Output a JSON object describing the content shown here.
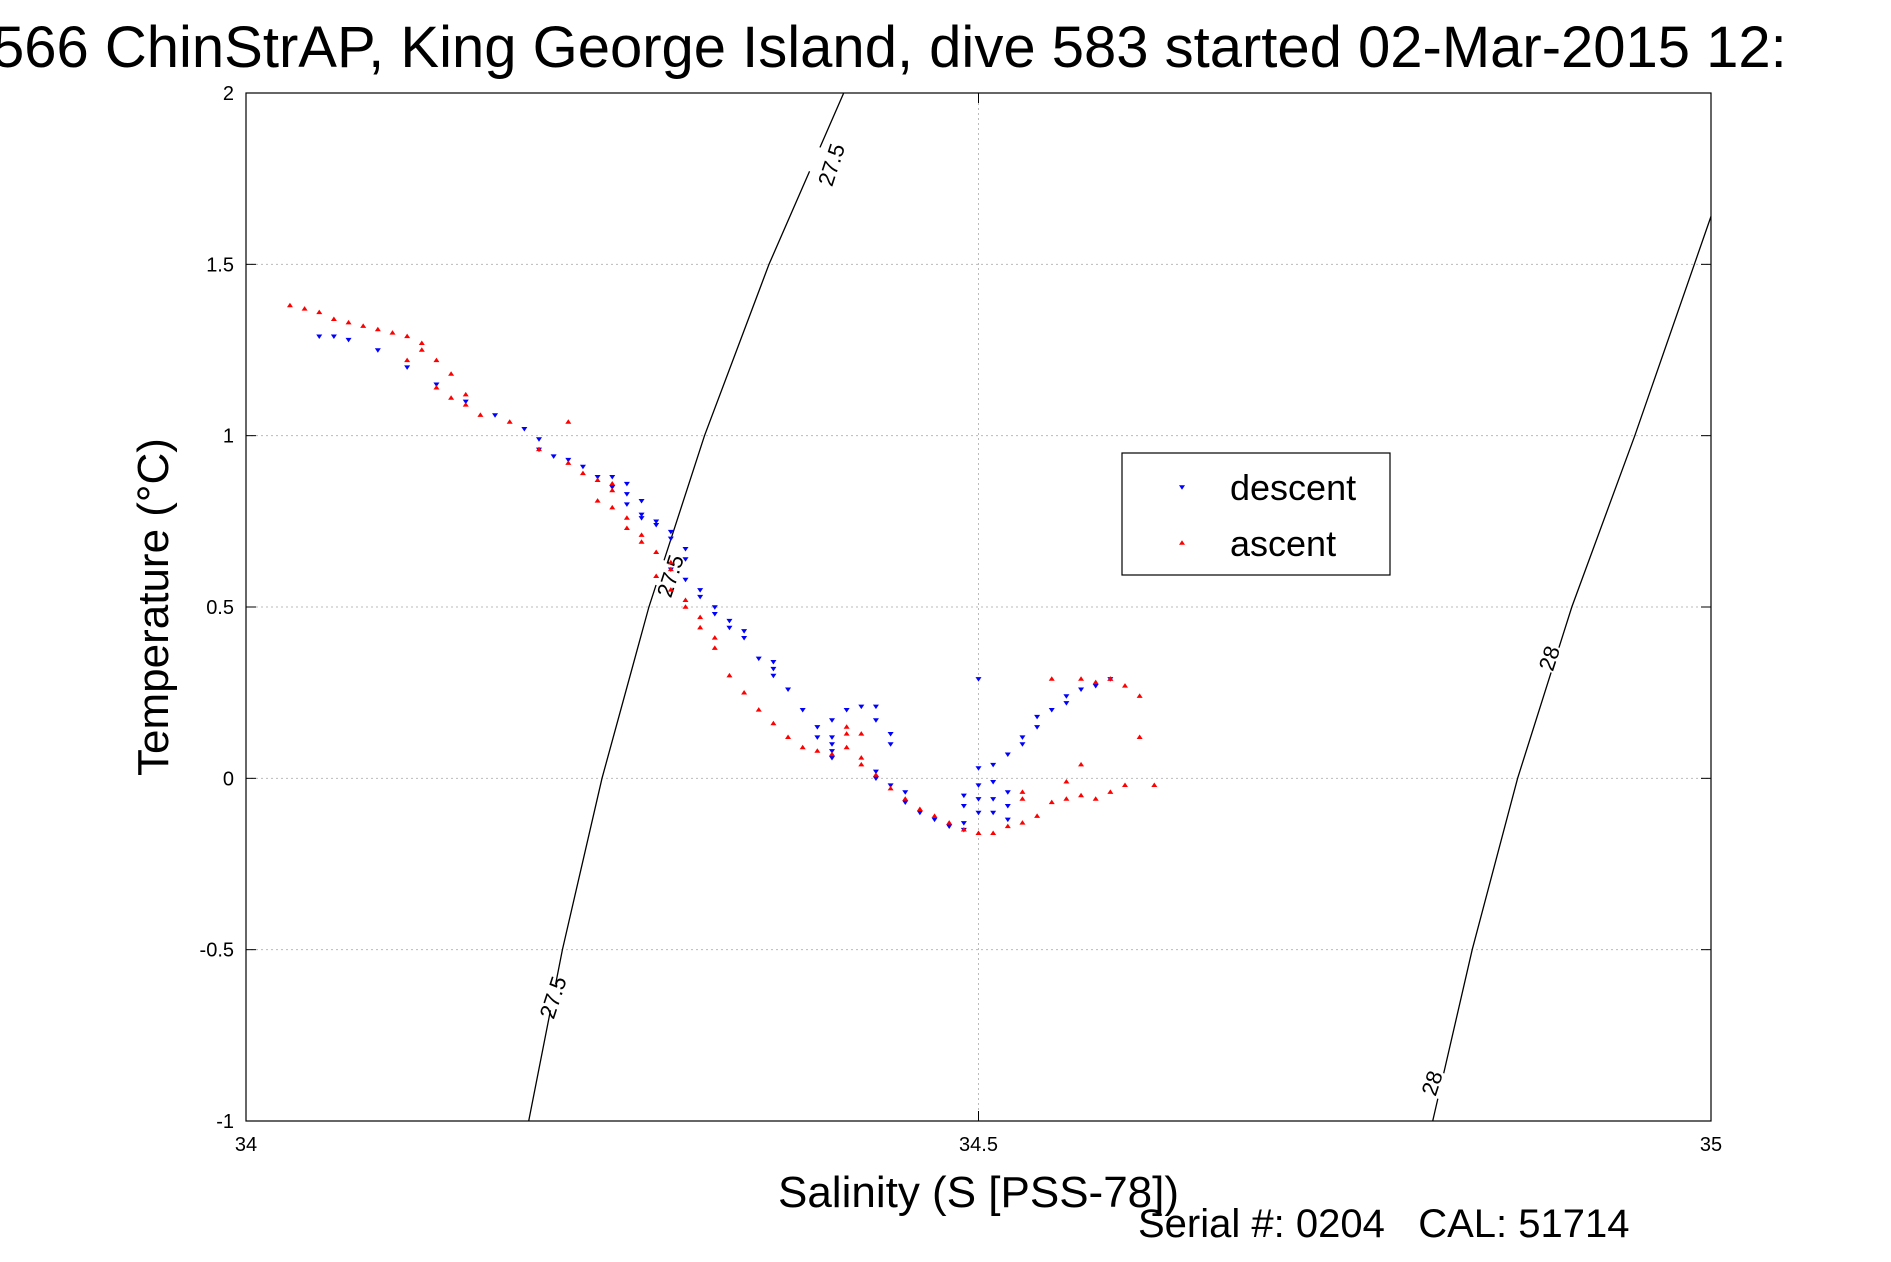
{
  "title": "566 ChinStrAP, King George Island, dive 583 started 02-Mar-2015 12:",
  "footer": {
    "serial_label": "Serial #:",
    "serial_value": "0204",
    "cal_label": "CAL:",
    "cal_value": "51714"
  },
  "colors": {
    "descent": "#0000ff",
    "ascent": "#ff0000",
    "grid": "#bbbbbb",
    "contour": "#000000"
  },
  "chart_data": {
    "type": "scatter",
    "xlabel": "Salinity (S [PSS-78])",
    "ylabel": "Temperature (°C)",
    "xlim": [
      34,
      35
    ],
    "ylim": [
      -1,
      2
    ],
    "xticks": [
      34,
      34.5,
      35
    ],
    "xtick_labels": [
      "34",
      "34.5",
      "35"
    ],
    "yticks": [
      -1,
      -0.5,
      0,
      0.5,
      1,
      1.5,
      2
    ],
    "ytick_labels": [
      "-1",
      "-0.5",
      "0",
      "0.5",
      "1",
      "1.5",
      "2"
    ],
    "grid": true,
    "legend_position": "inside-right",
    "series": [
      {
        "name": "descent",
        "marker": "triangle-down",
        "color": "#0000ff",
        "points": [
          [
            34.05,
            1.29
          ],
          [
            34.06,
            1.29
          ],
          [
            34.07,
            1.28
          ],
          [
            34.09,
            1.25
          ],
          [
            34.11,
            1.2
          ],
          [
            34.13,
            1.15
          ],
          [
            34.15,
            1.1
          ],
          [
            34.17,
            1.06
          ],
          [
            34.19,
            1.02
          ],
          [
            34.2,
            0.99
          ],
          [
            34.2,
            0.96
          ],
          [
            34.21,
            0.94
          ],
          [
            34.22,
            0.93
          ],
          [
            34.23,
            0.91
          ],
          [
            34.24,
            0.88
          ],
          [
            34.25,
            0.88
          ],
          [
            34.26,
            0.86
          ],
          [
            34.25,
            0.85
          ],
          [
            34.26,
            0.83
          ],
          [
            34.27,
            0.81
          ],
          [
            34.26,
            0.8
          ],
          [
            34.27,
            0.77
          ],
          [
            34.28,
            0.74
          ],
          [
            34.29,
            0.72
          ],
          [
            34.28,
            0.75
          ],
          [
            34.27,
            0.76
          ],
          [
            34.29,
            0.7
          ],
          [
            34.3,
            0.67
          ],
          [
            34.3,
            0.64
          ],
          [
            34.29,
            0.61
          ],
          [
            34.3,
            0.58
          ],
          [
            34.31,
            0.55
          ],
          [
            34.31,
            0.53
          ],
          [
            34.32,
            0.5
          ],
          [
            34.32,
            0.48
          ],
          [
            34.33,
            0.46
          ],
          [
            34.33,
            0.44
          ],
          [
            34.34,
            0.43
          ],
          [
            34.34,
            0.41
          ],
          [
            34.35,
            0.35
          ],
          [
            34.36,
            0.34
          ],
          [
            34.36,
            0.32
          ],
          [
            34.36,
            0.3
          ],
          [
            34.37,
            0.26
          ],
          [
            34.38,
            0.2
          ],
          [
            34.39,
            0.15
          ],
          [
            34.39,
            0.12
          ],
          [
            34.4,
            0.1
          ],
          [
            34.4,
            0.06
          ],
          [
            34.4,
            0.08
          ],
          [
            34.4,
            0.12
          ],
          [
            34.4,
            0.17
          ],
          [
            34.41,
            0.2
          ],
          [
            34.42,
            0.21
          ],
          [
            34.43,
            0.21
          ],
          [
            34.43,
            0.17
          ],
          [
            34.44,
            0.13
          ],
          [
            34.44,
            0.1
          ],
          [
            34.43,
            0.02
          ],
          [
            34.43,
            0.0
          ],
          [
            34.44,
            -0.02
          ],
          [
            34.45,
            -0.04
          ],
          [
            34.45,
            -0.07
          ],
          [
            34.46,
            -0.1
          ],
          [
            34.47,
            -0.12
          ],
          [
            34.48,
            -0.14
          ],
          [
            34.49,
            -0.15
          ],
          [
            34.49,
            -0.13
          ],
          [
            34.49,
            -0.08
          ],
          [
            34.49,
            -0.05
          ],
          [
            34.5,
            -0.1
          ],
          [
            34.5,
            -0.06
          ],
          [
            34.5,
            -0.02
          ],
          [
            34.51,
            -0.01
          ],
          [
            34.51,
            -0.06
          ],
          [
            34.51,
            -0.1
          ],
          [
            34.52,
            -0.12
          ],
          [
            34.52,
            -0.08
          ],
          [
            34.52,
            -0.04
          ],
          [
            34.5,
            0.03
          ],
          [
            34.51,
            0.04
          ],
          [
            34.52,
            0.07
          ],
          [
            34.53,
            0.1
          ],
          [
            34.53,
            0.12
          ],
          [
            34.54,
            0.15
          ],
          [
            34.54,
            0.18
          ],
          [
            34.55,
            0.2
          ],
          [
            34.56,
            0.22
          ],
          [
            34.56,
            0.24
          ],
          [
            34.57,
            0.26
          ],
          [
            34.58,
            0.27
          ],
          [
            34.59,
            0.29
          ],
          [
            34.5,
            0.29
          ]
        ]
      },
      {
        "name": "ascent",
        "marker": "triangle-up",
        "color": "#ff0000",
        "points": [
          [
            34.03,
            1.38
          ],
          [
            34.04,
            1.37
          ],
          [
            34.05,
            1.36
          ],
          [
            34.06,
            1.34
          ],
          [
            34.07,
            1.33
          ],
          [
            34.08,
            1.32
          ],
          [
            34.09,
            1.31
          ],
          [
            34.1,
            1.3
          ],
          [
            34.11,
            1.29
          ],
          [
            34.12,
            1.27
          ],
          [
            34.12,
            1.25
          ],
          [
            34.11,
            1.22
          ],
          [
            34.13,
            1.22
          ],
          [
            34.14,
            1.18
          ],
          [
            34.13,
            1.14
          ],
          [
            34.15,
            1.12
          ],
          [
            34.15,
            1.09
          ],
          [
            34.16,
            1.06
          ],
          [
            34.14,
            1.11
          ],
          [
            34.18,
            1.04
          ],
          [
            34.22,
            1.04
          ],
          [
            34.2,
            0.96
          ],
          [
            34.22,
            0.92
          ],
          [
            34.23,
            0.89
          ],
          [
            34.24,
            0.87
          ],
          [
            34.25,
            0.86
          ],
          [
            34.25,
            0.84
          ],
          [
            34.24,
            0.81
          ],
          [
            34.25,
            0.79
          ],
          [
            34.26,
            0.76
          ],
          [
            34.26,
            0.73
          ],
          [
            34.27,
            0.71
          ],
          [
            34.27,
            0.69
          ],
          [
            34.28,
            0.66
          ],
          [
            34.29,
            0.63
          ],
          [
            34.29,
            0.61
          ],
          [
            34.28,
            0.59
          ],
          [
            34.29,
            0.55
          ],
          [
            34.3,
            0.52
          ],
          [
            34.3,
            0.5
          ],
          [
            34.31,
            0.47
          ],
          [
            34.31,
            0.44
          ],
          [
            34.32,
            0.41
          ],
          [
            34.32,
            0.38
          ],
          [
            34.33,
            0.3
          ],
          [
            34.34,
            0.25
          ],
          [
            34.35,
            0.2
          ],
          [
            34.36,
            0.16
          ],
          [
            34.37,
            0.12
          ],
          [
            34.38,
            0.09
          ],
          [
            34.39,
            0.08
          ],
          [
            34.4,
            0.07
          ],
          [
            34.41,
            0.09
          ],
          [
            34.41,
            0.13
          ],
          [
            34.41,
            0.15
          ],
          [
            34.42,
            0.13
          ],
          [
            34.42,
            0.06
          ],
          [
            34.42,
            0.04
          ],
          [
            34.43,
            0.01
          ],
          [
            34.44,
            -0.03
          ],
          [
            34.45,
            -0.06
          ],
          [
            34.46,
            -0.09
          ],
          [
            34.47,
            -0.11
          ],
          [
            34.48,
            -0.13
          ],
          [
            34.49,
            -0.15
          ],
          [
            34.5,
            -0.16
          ],
          [
            34.51,
            -0.16
          ],
          [
            34.52,
            -0.14
          ],
          [
            34.53,
            -0.13
          ],
          [
            34.54,
            -0.11
          ],
          [
            34.53,
            -0.06
          ],
          [
            34.53,
            -0.04
          ],
          [
            34.55,
            -0.07
          ],
          [
            34.56,
            -0.06
          ],
          [
            34.57,
            -0.05
          ],
          [
            34.56,
            -0.01
          ],
          [
            34.57,
            0.04
          ],
          [
            34.58,
            -0.06
          ],
          [
            34.59,
            -0.04
          ],
          [
            34.6,
            -0.02
          ],
          [
            34.55,
            0.29
          ],
          [
            34.57,
            0.29
          ],
          [
            34.59,
            0.29
          ],
          [
            34.6,
            0.27
          ],
          [
            34.61,
            0.24
          ],
          [
            34.61,
            0.12
          ],
          [
            34.62,
            -0.02
          ],
          [
            34.59,
            0.29
          ],
          [
            34.58,
            0.28
          ]
        ]
      }
    ],
    "contours": [
      {
        "label": "27.5",
        "points": [
          [
            34.193,
            -1.0
          ],
          [
            34.216,
            -0.5
          ],
          [
            34.243,
            0.0
          ],
          [
            34.275,
            0.5
          ],
          [
            34.313,
            1.0
          ],
          [
            34.357,
            1.5
          ],
          [
            34.408,
            2.0
          ]
        ],
        "label_at": [
          [
            34.21,
            -0.64
          ],
          [
            34.29,
            0.59
          ],
          [
            34.4,
            1.79
          ]
        ]
      },
      {
        "label": "28",
        "points": [
          [
            34.81,
            -1.0
          ],
          [
            34.837,
            -0.5
          ],
          [
            34.868,
            0.0
          ],
          [
            34.905,
            0.5
          ],
          [
            34.948,
            1.0
          ],
          [
            35.0,
            1.64
          ]
        ],
        "label_at": [
          [
            34.81,
            -0.89
          ],
          [
            34.89,
            0.35
          ]
        ]
      }
    ]
  }
}
